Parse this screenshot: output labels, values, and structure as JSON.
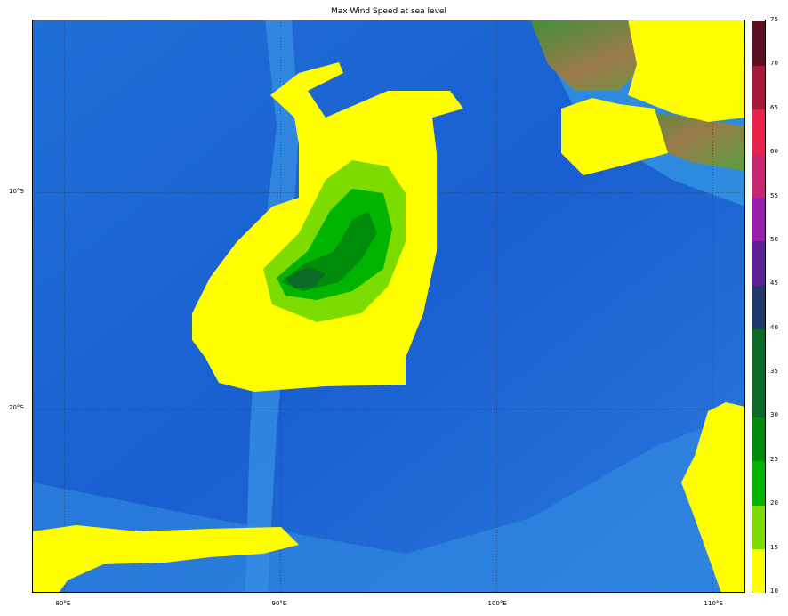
{
  "title": "Max Wind Speed at sea level",
  "map": {
    "variable": "Max Wind Speed at sea level",
    "lon_ticks": [
      {
        "value": 80,
        "label": "80°E"
      },
      {
        "value": 90,
        "label": "90°E"
      },
      {
        "value": 100,
        "label": "100°E"
      },
      {
        "value": 110,
        "label": "110°E"
      }
    ],
    "lat_ticks": [
      {
        "value": -10,
        "label": "10°S"
      },
      {
        "value": -20,
        "label": "20°S"
      }
    ],
    "extent": {
      "lon_min": 78.5,
      "lon_max": 111.5,
      "lat_min": -28.5,
      "lat_max": -2
    },
    "gridlines": true,
    "basemap": "shaded relief bathymetry"
  },
  "colorbar": {
    "bounds": [
      10,
      15,
      20,
      25,
      30,
      35,
      40,
      45,
      50,
      55,
      60,
      65,
      70,
      75
    ],
    "labels": [
      "10",
      "15",
      "20",
      "25",
      "30",
      "35",
      "40",
      "45",
      "50",
      "55",
      "60",
      "65",
      "70",
      "75"
    ],
    "colors": [
      "#ffff00",
      "#7cdc00",
      "#00b400",
      "#008c0a",
      "#0a6a26",
      "#0a6a26",
      "#22386a",
      "#5e2196",
      "#9b1fab",
      "#c82670",
      "#e8234a",
      "#a81838",
      "#5e0f22"
    ]
  }
}
